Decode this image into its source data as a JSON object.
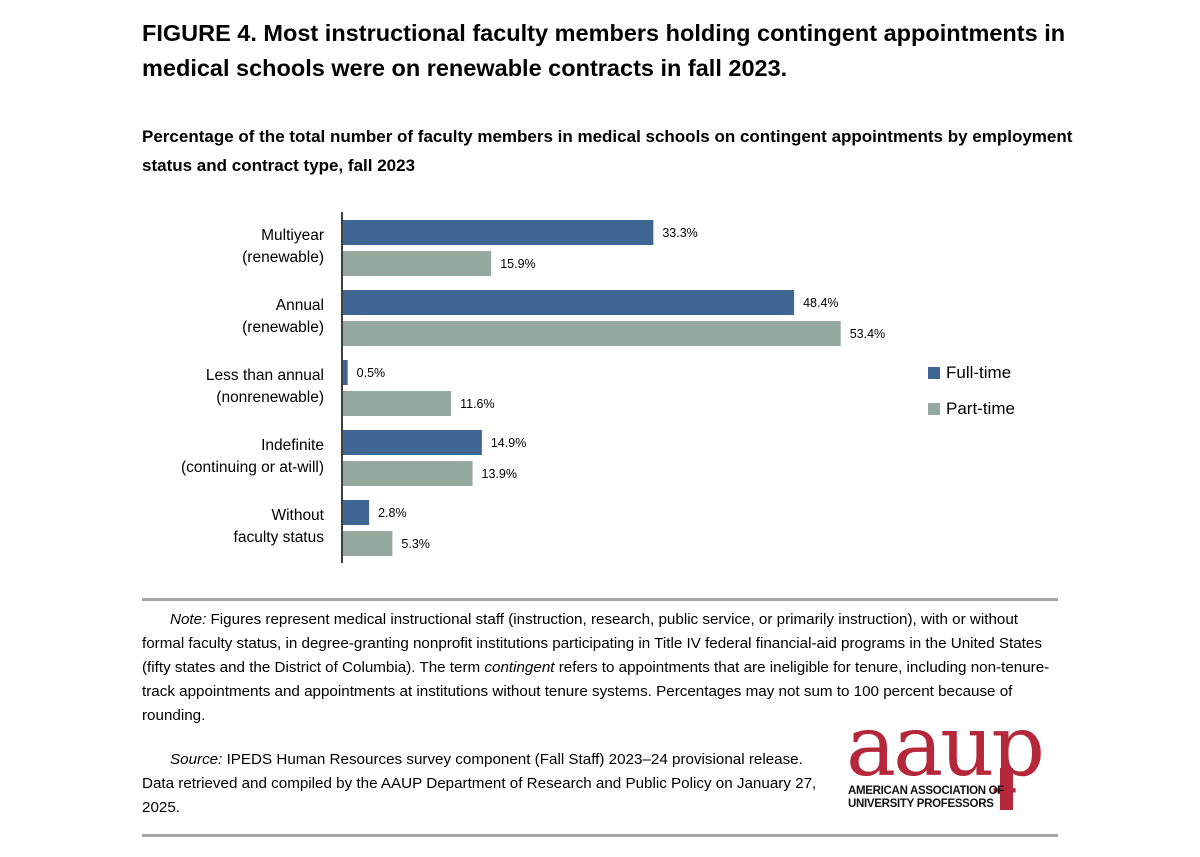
{
  "figure": {
    "title": "FIGURE 4. Most instructional faculty members holding contingent appointments in medical schools were on renewable contracts in fall 2023."
  },
  "chart_data": {
    "type": "bar",
    "orientation": "horizontal",
    "title": "Percentage of the total number of faculty members in medical schools on contingent appointments by employment status and contract type, fall 2023",
    "categories": [
      [
        "Multiyear",
        "(renewable)"
      ],
      [
        "Annual",
        "(renewable)"
      ],
      [
        "Less than annual",
        "(nonrenewable)"
      ],
      [
        "Indefinite",
        "(continuing or at-will)"
      ],
      [
        "Without",
        "faculty status"
      ]
    ],
    "series": [
      {
        "name": "Full-time",
        "color": "#3f6593",
        "values": [
          33.3,
          48.4,
          0.5,
          14.9,
          2.8
        ]
      },
      {
        "name": "Part-time",
        "color": "#95a99f",
        "values": [
          15.9,
          53.4,
          11.6,
          13.9,
          5.3
        ]
      }
    ],
    "value_suffix": "%",
    "xlim": [
      0,
      100
    ],
    "grid": false,
    "legend_position": "right"
  },
  "note": {
    "label": "Note:",
    "text_1": " Figures represent medical instructional staff (instruction, research, public service, or primarily instruction), with or without formal faculty status, in degree-granting nonprofit institutions participating in Title IV federal financial-aid programs in the United States (fifty states and the District of Columbia). The term ",
    "emphasis": "contingent",
    "text_2": " refers to appointments that are ineligible for tenure, including non-tenure-track appointments and appointments at institutions without tenure systems. Percentages may not sum to 100 percent because of rounding."
  },
  "source": {
    "label": "Source:",
    "text": " IPEDS Human Resources survey component (Fall Staff) 2023–24 provisional release. Data retrieved and compiled by the AAUP Department of Research and Public Policy on January 27, 2025."
  },
  "logo": {
    "wordmark": "aaup",
    "line_1": "AMERICAN ASSOCIATION OF",
    "line_2": "UNIVERSITY PROFESSORS",
    "color": "#b5283c"
  }
}
